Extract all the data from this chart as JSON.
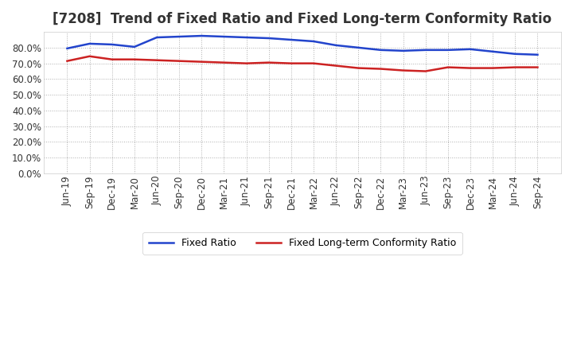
{
  "title": "[7208]  Trend of Fixed Ratio and Fixed Long-term Conformity Ratio",
  "x_labels": [
    "Jun-19",
    "Sep-19",
    "Dec-19",
    "Mar-20",
    "Jun-20",
    "Sep-20",
    "Dec-20",
    "Mar-21",
    "Jun-21",
    "Sep-21",
    "Dec-21",
    "Mar-22",
    "Jun-22",
    "Sep-22",
    "Dec-22",
    "Mar-23",
    "Jun-23",
    "Sep-23",
    "Dec-23",
    "Mar-24",
    "Jun-24",
    "Sep-24"
  ],
  "fixed_ratio": [
    79.5,
    82.5,
    82.0,
    80.5,
    86.5,
    87.0,
    87.5,
    87.0,
    86.5,
    86.0,
    85.0,
    84.0,
    81.5,
    80.0,
    78.5,
    78.0,
    78.5,
    78.5,
    79.0,
    77.5,
    76.0,
    75.5
  ],
  "fixed_lt_ratio": [
    71.5,
    74.5,
    72.5,
    72.5,
    72.0,
    71.5,
    71.0,
    70.5,
    70.0,
    70.5,
    70.0,
    70.0,
    68.5,
    67.0,
    66.5,
    65.5,
    65.0,
    67.5,
    67.0,
    67.0,
    67.5,
    67.5
  ],
  "fixed_ratio_color": "#2244cc",
  "fixed_lt_ratio_color": "#cc2222",
  "ylim": [
    0,
    90
  ],
  "yticks": [
    0,
    10,
    20,
    30,
    40,
    50,
    60,
    70,
    80
  ],
  "background_color": "#ffffff",
  "plot_bg_color": "#ffffff",
  "grid_color": "#999999",
  "title_fontsize": 12,
  "tick_fontsize": 8.5,
  "legend_fontsize": 9
}
